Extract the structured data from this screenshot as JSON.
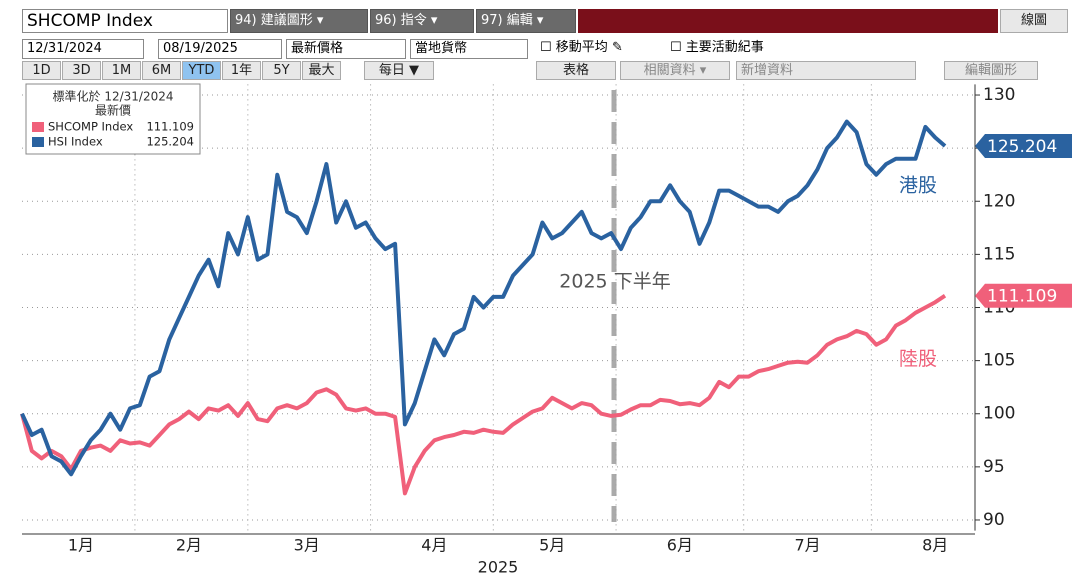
{
  "toolbar": {
    "ticker": "SHCOMP Index",
    "menus": [
      "94) 建議圖形 ▾",
      "96) 指令 ▾",
      "97) 編輯 ▾"
    ],
    "view": "線圖",
    "start_date": "12/31/2024",
    "end_date": "08/19/2025",
    "price_field": "最新價格",
    "currency": "當地貨幣",
    "options": [
      "移動平均",
      "主要活動紀事"
    ],
    "periods": [
      "1D",
      "3D",
      "1M",
      "6M",
      "YTD",
      "1年",
      "5Y",
      "最大"
    ],
    "frequency": "每日 ▼",
    "tools": [
      "表格",
      "相關資料 ▾",
      "新增資料",
      "編輯圖形"
    ]
  },
  "chart_data": {
    "type": "line",
    "legend_title": "標準化於 12/31/2024",
    "legend_subtitle": "最新價",
    "legend": "top-left",
    "categories": [
      null,
      null,
      null,
      null,
      null,
      null,
      "1月",
      null,
      null,
      null,
      null,
      null,
      null,
      null,
      null,
      null,
      null,
      "2月",
      null,
      null,
      null,
      null,
      null,
      null,
      null,
      null,
      null,
      null,
      null,
      "3月",
      null,
      null,
      null,
      null,
      null,
      null,
      null,
      null,
      null,
      null,
      null,
      null,
      "4月",
      null,
      null,
      null,
      null,
      null,
      null,
      null,
      null,
      null,
      null,
      null,
      "5月",
      null,
      null,
      null,
      null,
      null,
      null,
      null,
      null,
      null,
      null,
      null,
      null,
      "6月",
      null,
      null,
      null,
      null,
      null,
      null,
      null,
      null,
      null,
      null,
      null,
      null,
      "7月",
      null,
      null,
      null,
      null,
      null,
      null,
      null,
      null,
      null,
      null,
      null,
      null,
      "8月",
      null
    ],
    "xlabel": "2025",
    "series": [
      {
        "name": "SHCOMP Index",
        "color": "#f0607a",
        "annotation": "陸股",
        "values": [
          100,
          96.5,
          95.8,
          96.5,
          96,
          94.8,
          96.5,
          96.8,
          97,
          96.5,
          97.5,
          97.2,
          97.3,
          97,
          98,
          99,
          99.5,
          100.2,
          99.5,
          100.5,
          100.3,
          100.8,
          99.8,
          101,
          99.5,
          99.3,
          100.5,
          100.8,
          100.5,
          101,
          102,
          102.3,
          101.8,
          100.5,
          100.3,
          100.5,
          100,
          100,
          99.7,
          92.5,
          95,
          96.5,
          97.5,
          97.8,
          98,
          98.3,
          98.2,
          98.5,
          98.3,
          98.2,
          99,
          99.6,
          100.2,
          100.5,
          101.5,
          101,
          100.5,
          101,
          100.8,
          100,
          99.8,
          99.9,
          100.4,
          100.8,
          100.8,
          101.3,
          101.2,
          100.9,
          101,
          100.8,
          101.5,
          103,
          102.5,
          103.5,
          103.5,
          104,
          104.2,
          104.5,
          104.8,
          104.9,
          104.8,
          105.5,
          106.5,
          107,
          107.3,
          107.8,
          107.5,
          106.5,
          107,
          108.3,
          108.8,
          109.5,
          110,
          110.5,
          111.109
        ]
      },
      {
        "name": "HSI Index",
        "color": "#2a62a0",
        "annotation": "港股",
        "values": [
          100,
          98,
          98.5,
          96,
          95.5,
          94.3,
          96,
          97.5,
          98.5,
          100,
          98.5,
          100.5,
          100.8,
          103.5,
          104,
          107,
          109,
          111,
          113,
          114.5,
          112,
          117,
          115,
          118.5,
          114.5,
          115,
          122.5,
          119,
          118.5,
          117,
          120,
          123.5,
          118,
          120,
          117.5,
          118,
          116.5,
          115.5,
          116,
          99,
          101,
          104,
          107,
          105.5,
          107.5,
          108,
          111,
          110,
          111,
          111,
          113,
          114,
          115,
          118,
          116.5,
          117,
          118,
          119,
          117,
          116.5,
          117,
          115.5,
          117.5,
          118.5,
          120,
          120,
          121.5,
          120,
          119,
          116,
          118,
          121,
          121,
          120.5,
          120,
          119.5,
          119.5,
          119,
          120,
          120.5,
          121.5,
          123,
          125,
          126,
          127.5,
          126.5,
          123.5,
          122.5,
          123.5,
          124,
          124,
          124,
          127,
          126,
          125.204
        ]
      }
    ],
    "annotation": "2025 下半年",
    "ylim": [
      89,
      131
    ],
    "yticks": [
      90,
      95,
      100,
      105,
      110,
      115,
      120,
      125,
      130
    ],
    "y_axis_side": "right",
    "grid": true
  }
}
